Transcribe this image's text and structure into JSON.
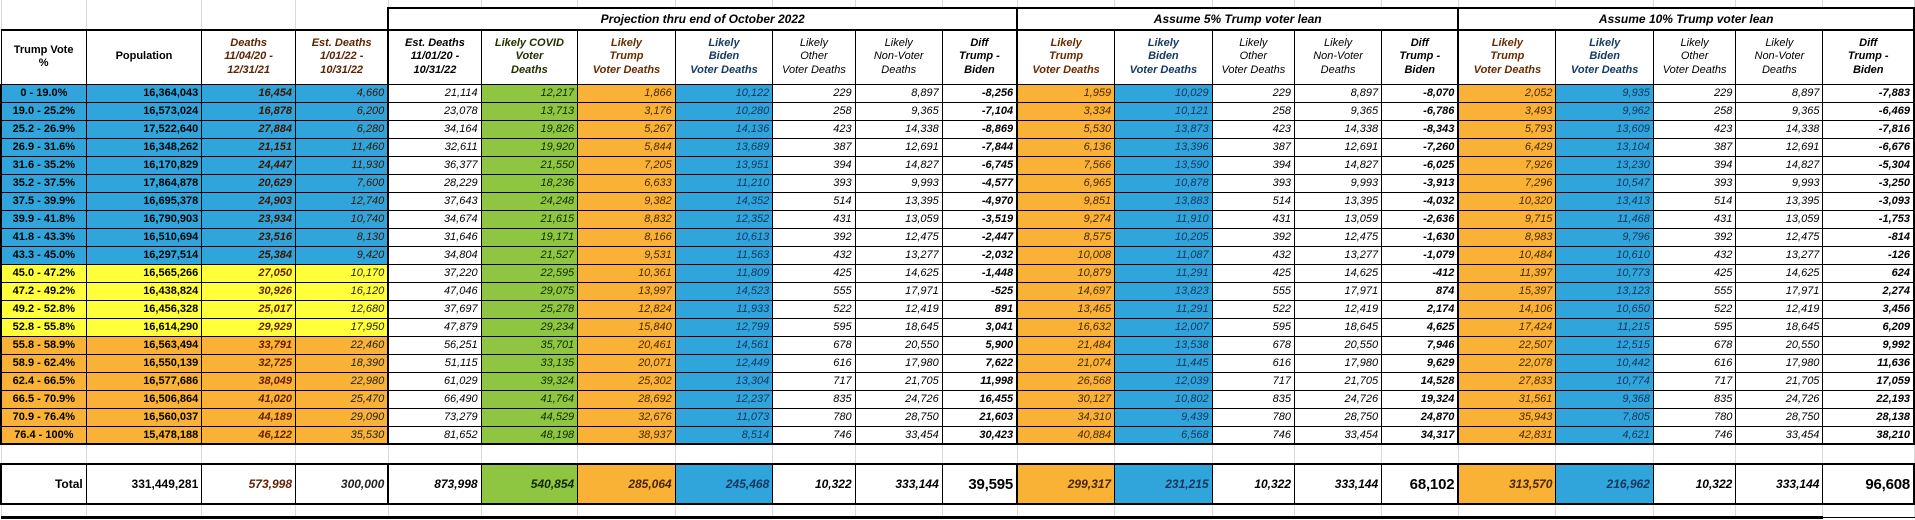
{
  "sheet": {
    "colors": {
      "biden_blue": "#2fa5dc",
      "trump_orange": "#f9b235",
      "covid_green": "#8ec641",
      "swing_yellow": "#ffff3a",
      "header_amber": "#fac55e"
    },
    "groups": [
      {
        "title": "Projection thru end of October 2022",
        "span": 7
      },
      {
        "title": "Assume 5% Trump voter lean",
        "span": 5
      },
      {
        "title": "Assume 10% Trump voter lean",
        "span": 5
      }
    ],
    "columns": [
      {
        "key": "trump-vote-pct",
        "header": "Trump Vote\n%"
      },
      {
        "key": "population",
        "header": "Population"
      },
      {
        "key": "deaths-110420-123121",
        "header": "Deaths\n11/04/20 -\n12/31/21"
      },
      {
        "key": "est-deaths-10122-103122",
        "header": "Est. Deaths\n1/01/22 -\n10/31/22"
      },
      {
        "key": "est-deaths-110120-103122",
        "header": "Est. Deaths\n11/01/20 -\n10/31/22"
      },
      {
        "key": "likely-covid-voter-deaths",
        "header": "Likely COVID\nVoter\nDeaths"
      },
      {
        "key": "likely-trump-voter-deaths",
        "header": "Likely\nTrump\nVoter Deaths"
      },
      {
        "key": "likely-biden-voter-deaths",
        "header": "Likely\nBiden\nVoter Deaths"
      },
      {
        "key": "likely-other-voter-deaths",
        "header": "Likely\nOther\nVoter Deaths"
      },
      {
        "key": "likely-nonvoter-deaths",
        "header": "Likely\nNon-Voter\nDeaths"
      },
      {
        "key": "diff-trump-biden",
        "header": "Diff\nTrump -\nBiden"
      },
      {
        "key": "likely-trump-voter-deaths-5pct",
        "header": "Likely\nTrump\nVoter Deaths"
      },
      {
        "key": "likely-biden-voter-deaths-5pct",
        "header": "Likely\nBiden\nVoter Deaths"
      },
      {
        "key": "likely-other-voter-deaths-5pct",
        "header": "Likely\nOther\nVoter Deaths"
      },
      {
        "key": "likely-nonvoter-deaths-5pct",
        "header": "Likely\nNon-Voter\nDeaths"
      },
      {
        "key": "diff-trump-biden-5pct",
        "header": "Diff\nTrump -\nBiden"
      },
      {
        "key": "likely-trump-voter-deaths-10pct",
        "header": "Likely\nTrump\nVoter Deaths"
      },
      {
        "key": "likely-biden-voter-deaths-10pct",
        "header": "Likely\nBiden\nVoter Deaths"
      },
      {
        "key": "likely-other-voter-deaths-10pct",
        "header": "Likely\nOther\nVoter Deaths"
      },
      {
        "key": "likely-nonvoter-deaths-10pct",
        "header": "Likely\nNon-Voter\nDeaths"
      },
      {
        "key": "diff-trump-biden-10pct",
        "header": "Diff\nTrump -\nBiden"
      }
    ],
    "rows": [
      {
        "band": "blue",
        "cells": [
          "0 - 19.0%",
          "16,364,043",
          "16,454",
          "4,660",
          "21,114",
          "12,217",
          "1,866",
          "10,122",
          "229",
          "8,897",
          "-8,256",
          "1,959",
          "10,029",
          "229",
          "8,897",
          "-8,070",
          "2,052",
          "9,935",
          "229",
          "8,897",
          "-7,883"
        ]
      },
      {
        "band": "blue",
        "cells": [
          "19.0 - 25.2%",
          "16,573,024",
          "16,878",
          "6,200",
          "23,078",
          "13,713",
          "3,176",
          "10,280",
          "258",
          "9,365",
          "-7,104",
          "3,334",
          "10,121",
          "258",
          "9,365",
          "-6,786",
          "3,493",
          "9,962",
          "258",
          "9,365",
          "-6,469"
        ]
      },
      {
        "band": "blue",
        "cells": [
          "25.2 - 26.9%",
          "17,522,640",
          "27,884",
          "6,280",
          "34,164",
          "19,826",
          "5,267",
          "14,136",
          "423",
          "14,338",
          "-8,869",
          "5,530",
          "13,873",
          "423",
          "14,338",
          "-8,343",
          "5,793",
          "13,609",
          "423",
          "14,338",
          "-7,816"
        ]
      },
      {
        "band": "blue",
        "cells": [
          "26.9 - 31.6%",
          "16,348,262",
          "21,151",
          "11,460",
          "32,611",
          "19,920",
          "5,844",
          "13,689",
          "387",
          "12,691",
          "-7,844",
          "6,136",
          "13,396",
          "387",
          "12,691",
          "-7,260",
          "6,429",
          "13,104",
          "387",
          "12,691",
          "-6,676"
        ]
      },
      {
        "band": "blue",
        "cells": [
          "31.6 - 35.2%",
          "16,170,829",
          "24,447",
          "11,930",
          "36,377",
          "21,550",
          "7,205",
          "13,951",
          "394",
          "14,827",
          "-6,745",
          "7,566",
          "13,590",
          "394",
          "14,827",
          "-6,025",
          "7,926",
          "13,230",
          "394",
          "14,827",
          "-5,304"
        ]
      },
      {
        "band": "blue",
        "cells": [
          "35.2 - 37.5%",
          "17,864,878",
          "20,629",
          "7,600",
          "28,229",
          "18,236",
          "6,633",
          "11,210",
          "393",
          "9,993",
          "-4,577",
          "6,965",
          "10,878",
          "393",
          "9,993",
          "-3,913",
          "7,296",
          "10,547",
          "393",
          "9,993",
          "-3,250"
        ]
      },
      {
        "band": "blue",
        "cells": [
          "37.5 - 39.9%",
          "16,695,378",
          "24,903",
          "12,740",
          "37,643",
          "24,248",
          "9,382",
          "14,352",
          "514",
          "13,395",
          "-4,970",
          "9,851",
          "13,883",
          "514",
          "13,395",
          "-4,032",
          "10,320",
          "13,413",
          "514",
          "13,395",
          "-3,093"
        ]
      },
      {
        "band": "blue",
        "cells": [
          "39.9 - 41.8%",
          "16,790,903",
          "23,934",
          "10,740",
          "34,674",
          "21,615",
          "8,832",
          "12,352",
          "431",
          "13,059",
          "-3,519",
          "9,274",
          "11,910",
          "431",
          "13,059",
          "-2,636",
          "9,715",
          "11,468",
          "431",
          "13,059",
          "-1,753"
        ]
      },
      {
        "band": "blue",
        "cells": [
          "41.8 - 43.3%",
          "16,510,694",
          "23,516",
          "8,130",
          "31,646",
          "19,171",
          "8,166",
          "10,613",
          "392",
          "12,475",
          "-2,447",
          "8,575",
          "10,205",
          "392",
          "12,475",
          "-1,630",
          "8,983",
          "9,796",
          "392",
          "12,475",
          "-814"
        ]
      },
      {
        "band": "blue",
        "cells": [
          "43.3 - 45.0%",
          "16,297,514",
          "25,384",
          "9,420",
          "34,804",
          "21,527",
          "9,531",
          "11,563",
          "432",
          "13,277",
          "-2,032",
          "10,008",
          "11,087",
          "432",
          "13,277",
          "-1,079",
          "10,484",
          "10,610",
          "432",
          "13,277",
          "-126"
        ]
      },
      {
        "band": "yellow",
        "cells": [
          "45.0 - 47.2%",
          "16,565,266",
          "27,050",
          "10,170",
          "37,220",
          "22,595",
          "10,361",
          "11,809",
          "425",
          "14,625",
          "-1,448",
          "10,879",
          "11,291",
          "425",
          "14,625",
          "-412",
          "11,397",
          "10,773",
          "425",
          "14,625",
          "624"
        ]
      },
      {
        "band": "yellow",
        "cells": [
          "47.2 - 49.2%",
          "16,438,824",
          "30,926",
          "16,120",
          "47,046",
          "29,075",
          "13,997",
          "14,523",
          "555",
          "17,971",
          "-525",
          "14,697",
          "13,823",
          "555",
          "17,971",
          "874",
          "15,397",
          "13,123",
          "555",
          "17,971",
          "2,274"
        ]
      },
      {
        "band": "yellow",
        "cells": [
          "49.2 - 52.8%",
          "16,456,328",
          "25,017",
          "12,680",
          "37,697",
          "25,278",
          "12,824",
          "11,933",
          "522",
          "12,419",
          "891",
          "13,465",
          "11,291",
          "522",
          "12,419",
          "2,174",
          "14,106",
          "10,650",
          "522",
          "12,419",
          "3,456"
        ]
      },
      {
        "band": "yellow",
        "cells": [
          "52.8 - 55.8%",
          "16,614,290",
          "29,929",
          "17,950",
          "47,879",
          "29,234",
          "15,840",
          "12,799",
          "595",
          "18,645",
          "3,041",
          "16,632",
          "12,007",
          "595",
          "18,645",
          "4,625",
          "17,424",
          "11,215",
          "595",
          "18,645",
          "6,209"
        ]
      },
      {
        "band": "orange",
        "cells": [
          "55.8 - 58.9%",
          "16,563,494",
          "33,791",
          "22,460",
          "56,251",
          "35,701",
          "20,461",
          "14,561",
          "678",
          "20,550",
          "5,900",
          "21,484",
          "13,538",
          "678",
          "20,550",
          "7,946",
          "22,507",
          "12,515",
          "678",
          "20,550",
          "9,992"
        ]
      },
      {
        "band": "orange",
        "cells": [
          "58.9 - 62.4%",
          "16,550,139",
          "32,725",
          "18,390",
          "51,115",
          "33,135",
          "20,071",
          "12,449",
          "616",
          "17,980",
          "7,622",
          "21,074",
          "11,445",
          "616",
          "17,980",
          "9,629",
          "22,078",
          "10,442",
          "616",
          "17,980",
          "11,636"
        ]
      },
      {
        "band": "orange",
        "cells": [
          "62.4 - 66.5%",
          "16,577,686",
          "38,049",
          "22,980",
          "61,029",
          "39,324",
          "25,302",
          "13,304",
          "717",
          "21,705",
          "11,998",
          "26,568",
          "12,039",
          "717",
          "21,705",
          "14,528",
          "27,833",
          "10,774",
          "717",
          "21,705",
          "17,059"
        ]
      },
      {
        "band": "orange",
        "cells": [
          "66.5 - 70.9%",
          "16,506,864",
          "41,020",
          "25,470",
          "66,490",
          "41,764",
          "28,692",
          "12,237",
          "835",
          "24,726",
          "16,455",
          "30,127",
          "10,802",
          "835",
          "24,726",
          "19,324",
          "31,561",
          "9,368",
          "835",
          "24,726",
          "22,193"
        ]
      },
      {
        "band": "orange",
        "cells": [
          "70.9 - 76.4%",
          "16,560,037",
          "44,189",
          "29,090",
          "73,279",
          "44,529",
          "32,676",
          "11,073",
          "780",
          "28,750",
          "21,603",
          "34,310",
          "9,439",
          "780",
          "28,750",
          "24,870",
          "35,943",
          "7,805",
          "780",
          "28,750",
          "28,138"
        ]
      },
      {
        "band": "orange",
        "cells": [
          "76.4 - 100%",
          "15,478,188",
          "46,122",
          "35,530",
          "81,652",
          "48,198",
          "38,937",
          "8,514",
          "746",
          "33,454",
          "30,423",
          "40,884",
          "6,568",
          "746",
          "33,454",
          "34,317",
          "42,831",
          "4,621",
          "746",
          "33,454",
          "38,210"
        ]
      }
    ],
    "total": {
      "cells": [
        "Total",
        "331,449,281",
        "573,998",
        "300,000",
        "873,998",
        "540,854",
        "285,064",
        "245,468",
        "10,322",
        "333,144",
        "39,595",
        "299,317",
        "231,215",
        "10,322",
        "333,144",
        "68,102",
        "313,570",
        "216,962",
        "10,322",
        "333,144",
        "96,608"
      ]
    }
  }
}
